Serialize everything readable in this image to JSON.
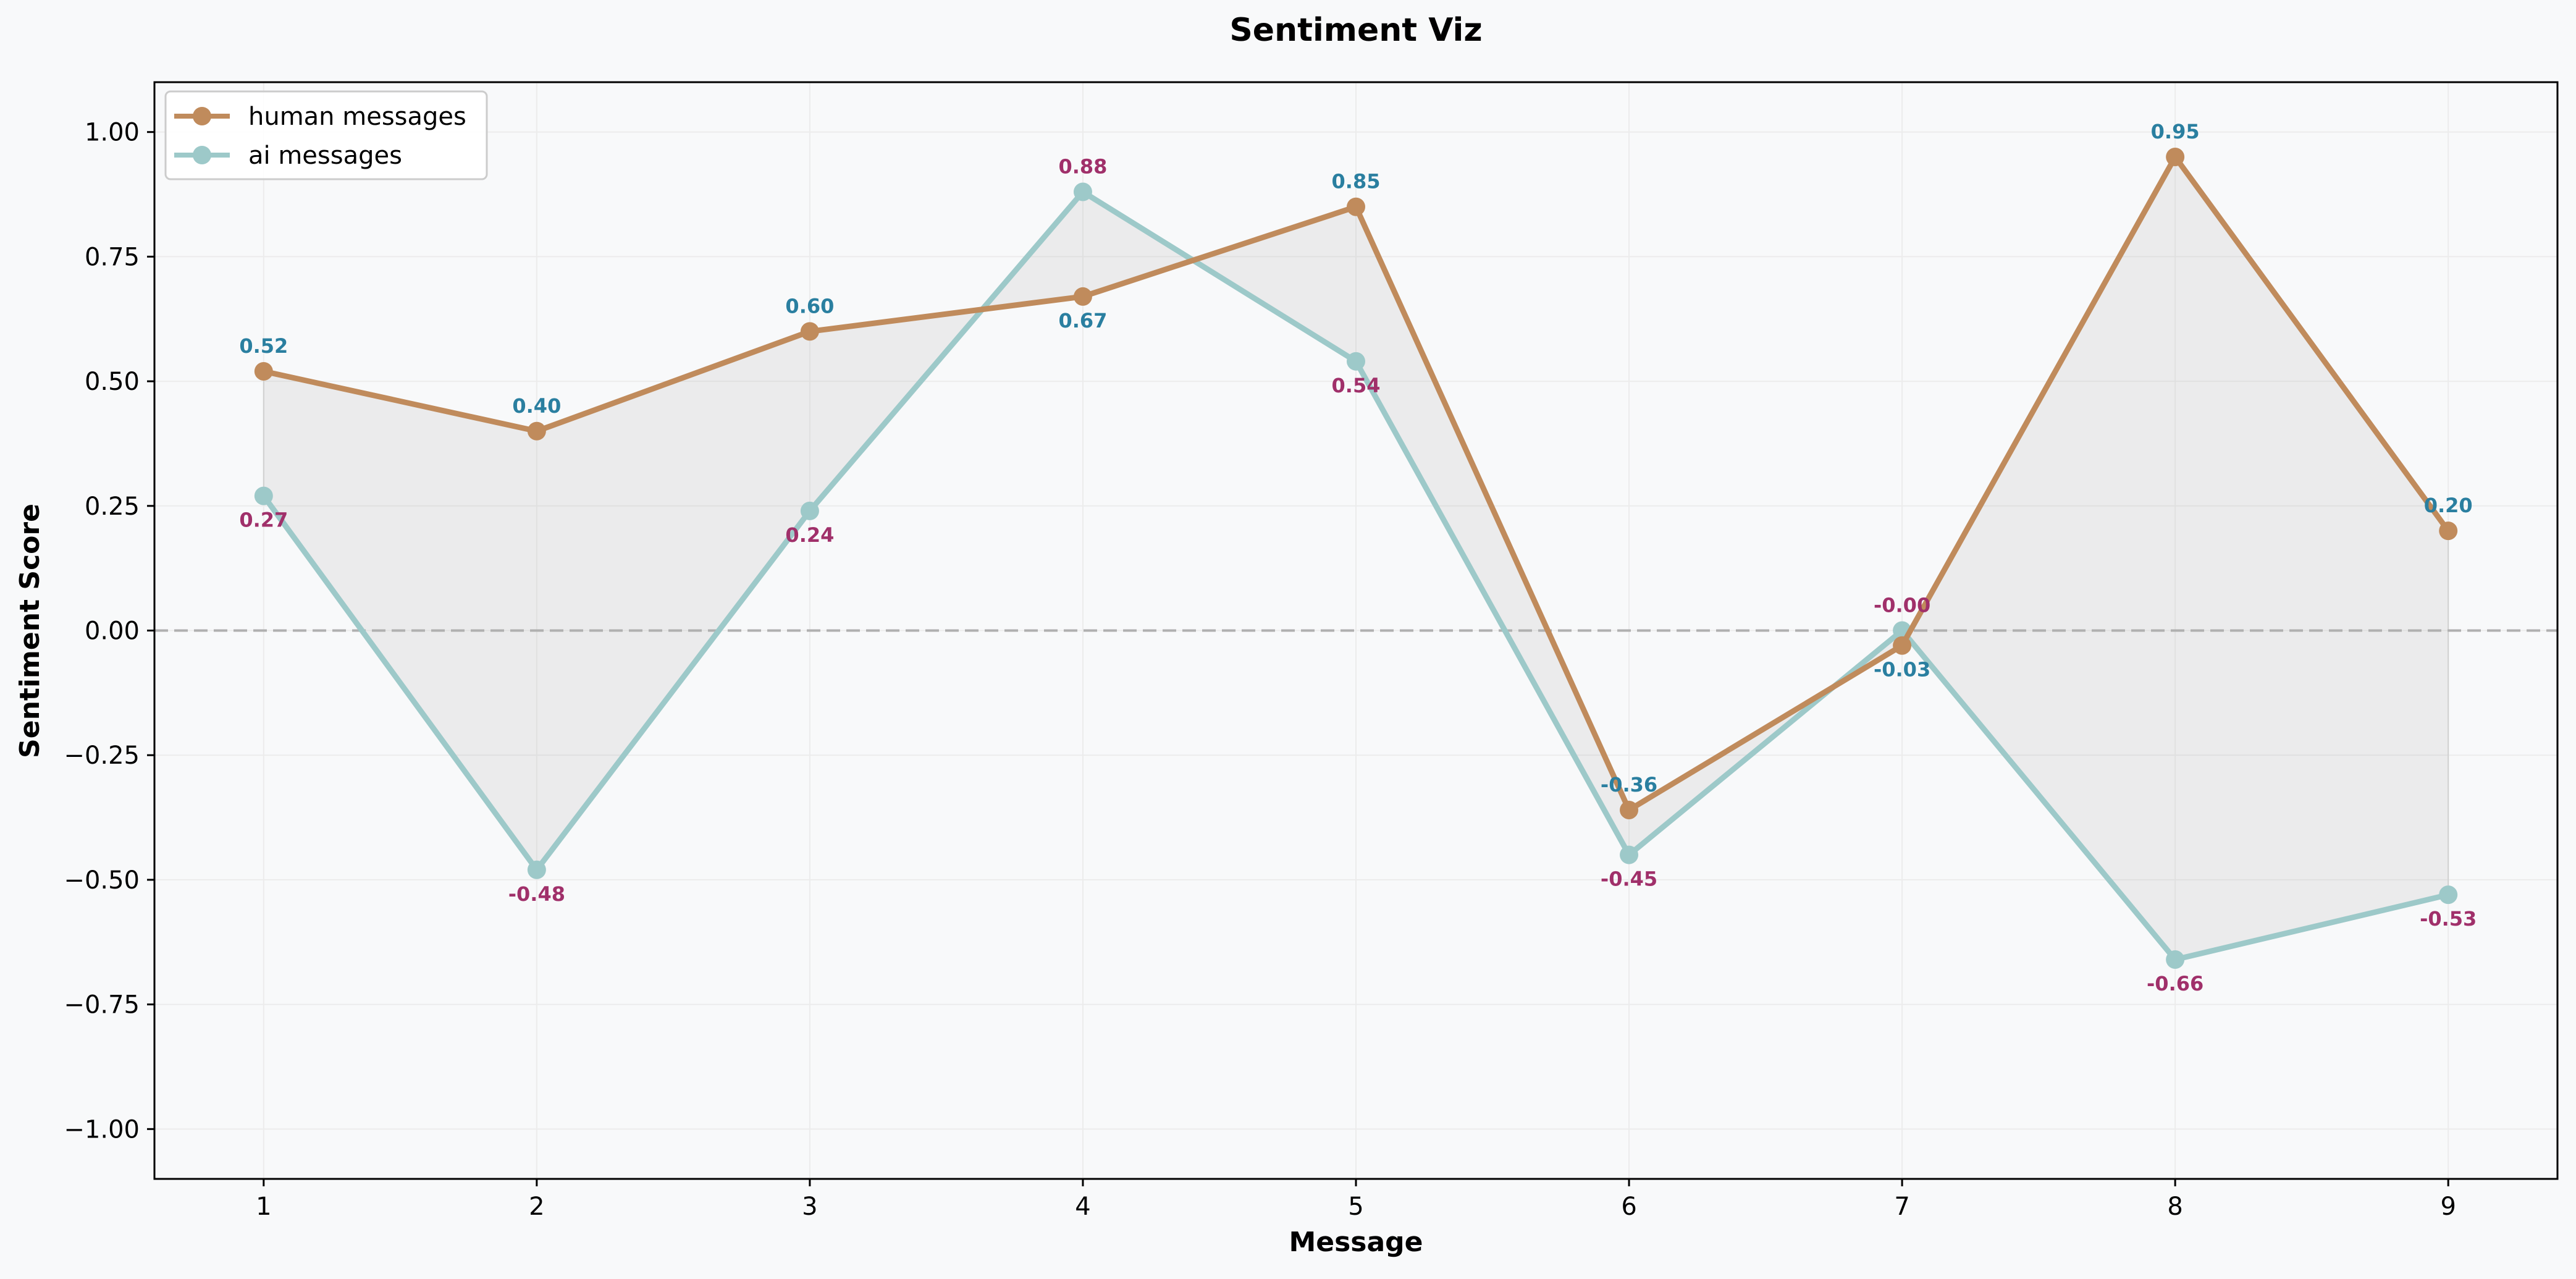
{
  "chart_data": {
    "type": "line",
    "title": "Sentiment Viz",
    "xlabel": "Message",
    "ylabel": "Sentiment Score",
    "x": [
      1,
      2,
      3,
      4,
      5,
      6,
      7,
      8,
      9
    ],
    "xticks": [
      "1",
      "2",
      "3",
      "4",
      "5",
      "6",
      "7",
      "8",
      "9"
    ],
    "xlim": [
      0.6,
      9.4
    ],
    "ylim": [
      -1.1,
      1.1
    ],
    "yticks": [
      -1.0,
      -0.75,
      -0.5,
      -0.25,
      0.0,
      0.25,
      0.5,
      0.75,
      1.0
    ],
    "ytick_labels": [
      "−1.00",
      "−0.75",
      "−0.50",
      "−0.25",
      "0.00",
      "0.25",
      "0.50",
      "0.75",
      "1.00"
    ],
    "grid": true,
    "reference_line_y": 0,
    "fill_between": true,
    "legend_position": "top-left",
    "series": [
      {
        "name": "human messages",
        "values": [
          0.52,
          0.4,
          0.6,
          0.67,
          0.85,
          -0.36,
          -0.03,
          0.95,
          0.2
        ],
        "labels": [
          "0.52",
          "0.40",
          "0.60",
          "0.67",
          "0.85",
          "-0.36",
          "-0.03",
          "0.95",
          "0.20"
        ],
        "color": "#c08b5c",
        "label_color": "#2a7fa0"
      },
      {
        "name": "ai messages",
        "values": [
          0.27,
          -0.48,
          0.24,
          0.88,
          0.54,
          -0.45,
          -0.0,
          -0.66,
          -0.53
        ],
        "labels": [
          "0.27",
          "-0.48",
          "0.24",
          "0.88",
          "0.54",
          "-0.45",
          "-0.00",
          "-0.66",
          "-0.53"
        ],
        "color": "#9dc9c9",
        "label_color": "#a0306a"
      }
    ]
  }
}
